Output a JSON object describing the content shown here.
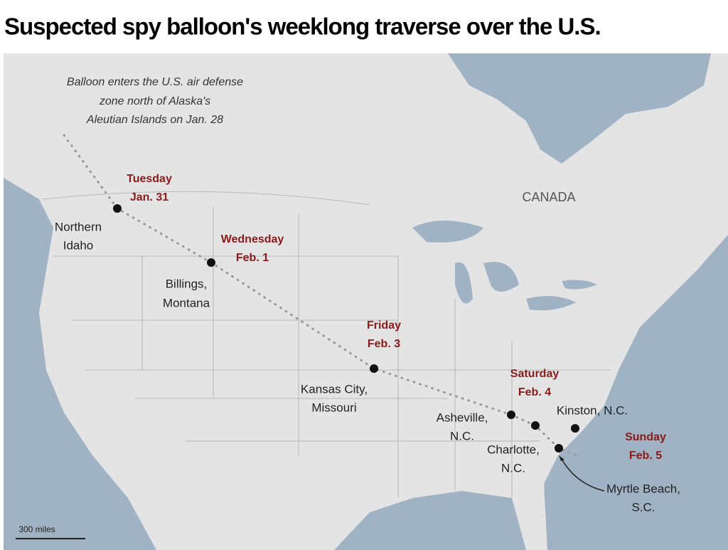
{
  "title": "Suspected spy balloon's weeklong traverse over the U.S.",
  "annotation": [
    "Balloon enters the U.S. air defense",
    "zone north of Alaska's",
    "Aleutian Islands on Jan. 28"
  ],
  "country_label": "CANADA",
  "dates": [
    {
      "day": "Tuesday",
      "date": "Jan. 31"
    },
    {
      "day": "Wednesday",
      "date": "Feb. 1"
    },
    {
      "day": "Friday",
      "date": "Feb. 3"
    },
    {
      "day": "Saturday",
      "date": "Feb. 4"
    },
    {
      "day": "Sunday",
      "date": "Feb. 5"
    }
  ],
  "places": [
    {
      "lines": [
        "Northern",
        "Idaho"
      ]
    },
    {
      "lines": [
        "Billings,",
        "Montana"
      ]
    },
    {
      "lines": [
        "Kansas City,",
        "Missouri"
      ]
    },
    {
      "lines": [
        "Asheville,",
        "N.C."
      ]
    },
    {
      "lines": [
        "Charlotte,",
        "N.C."
      ]
    },
    {
      "lines": [
        "Kinston, N.C."
      ]
    },
    {
      "lines": [
        "Myrtle Beach,",
        "S.C."
      ]
    }
  ],
  "scale_label": "300 miles"
}
